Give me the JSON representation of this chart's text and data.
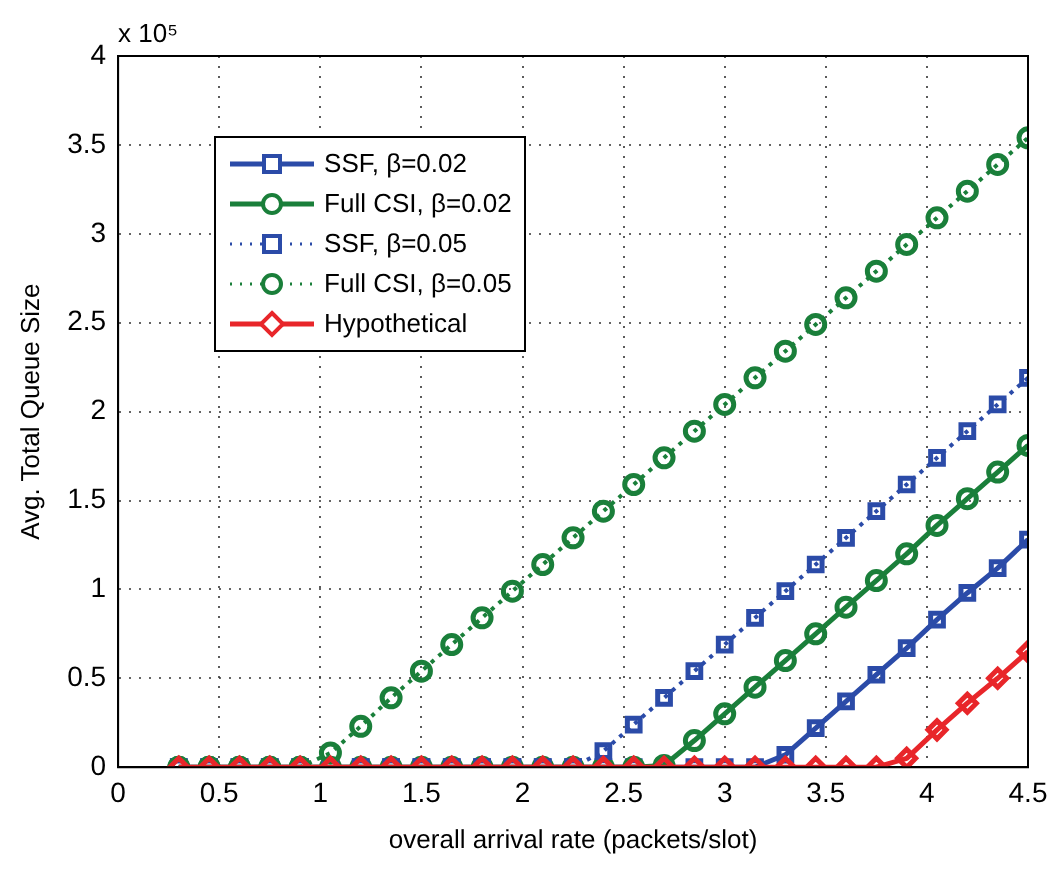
{
  "chart_data": {
    "type": "line",
    "xlabel": "overall arrival rate (packets/slot)",
    "ylabel": "Avg. Total Queue Size",
    "annotations": [
      "x 10⁵"
    ],
    "x": [
      0.3,
      0.45,
      0.6,
      0.75,
      0.9,
      1.05,
      1.2,
      1.35,
      1.5,
      1.65,
      1.8,
      1.95,
      2.1,
      2.25,
      2.4,
      2.55,
      2.7,
      2.85,
      3.0,
      3.15,
      3.3,
      3.45,
      3.6,
      3.75,
      3.9,
      4.05,
      4.2,
      4.35,
      4.5
    ],
    "series": [
      {
        "name": "SSF, β=0.02",
        "color": "#2b4ba8",
        "marker": "square",
        "line_style": "solid",
        "values": [
          0,
          0,
          0,
          0,
          0,
          0,
          0,
          0,
          0,
          0,
          0,
          0,
          0,
          0,
          0,
          0,
          0,
          0,
          0,
          0,
          0.07,
          0.22,
          0.37,
          0.52,
          0.67,
          0.83,
          0.98,
          1.12,
          1.28
        ]
      },
      {
        "name": "Full CSI, β=0.02",
        "color": "#1a7f3a",
        "marker": "circle",
        "line_style": "solid",
        "values": [
          0,
          0,
          0,
          0,
          0,
          0,
          0,
          0,
          0,
          0,
          0,
          0,
          0,
          0,
          0,
          0,
          0.01,
          0.15,
          0.3,
          0.45,
          0.6,
          0.75,
          0.9,
          1.05,
          1.2,
          1.36,
          1.51,
          1.66,
          1.81
        ]
      },
      {
        "name": "SSF, β=0.05",
        "color": "#2b4ba8",
        "marker": "square",
        "line_style": "dotted",
        "values": [
          0,
          0,
          0,
          0,
          0,
          0,
          0,
          0,
          0,
          0,
          0,
          0,
          0,
          0,
          0.09,
          0.24,
          0.39,
          0.54,
          0.69,
          0.84,
          0.99,
          1.14,
          1.29,
          1.44,
          1.59,
          1.74,
          1.89,
          2.04,
          2.19
        ]
      },
      {
        "name": "Full CSI, β=0.05",
        "color": "#1a7f3a",
        "marker": "circle",
        "line_style": "dotted",
        "values": [
          0,
          0,
          0,
          0,
          0,
          0.08,
          0.23,
          0.39,
          0.54,
          0.69,
          0.84,
          0.99,
          1.14,
          1.29,
          1.44,
          1.59,
          1.74,
          1.89,
          2.04,
          2.19,
          2.34,
          2.49,
          2.64,
          2.79,
          2.94,
          3.09,
          3.24,
          3.39,
          3.54
        ]
      },
      {
        "name": "Hypothetical",
        "color": "#e8262a",
        "marker": "diamond",
        "line_style": "solid",
        "values": [
          0,
          0,
          0,
          0,
          0,
          0,
          0,
          0,
          0,
          0,
          0,
          0,
          0,
          0,
          0,
          0,
          0,
          0,
          0,
          0,
          0,
          0,
          0,
          0,
          0.05,
          0.21,
          0.36,
          0.5,
          0.65
        ]
      }
    ],
    "xlim": [
      0,
      4.5
    ],
    "xticks": [
      0,
      0.5,
      1,
      1.5,
      2,
      2.5,
      3,
      3.5,
      4,
      4.5
    ],
    "ylim": [
      0,
      4
    ],
    "yticks": [
      0,
      0.5,
      1,
      1.5,
      2,
      2.5,
      3,
      3.5,
      4
    ],
    "grid": true,
    "legend": "top left"
  }
}
